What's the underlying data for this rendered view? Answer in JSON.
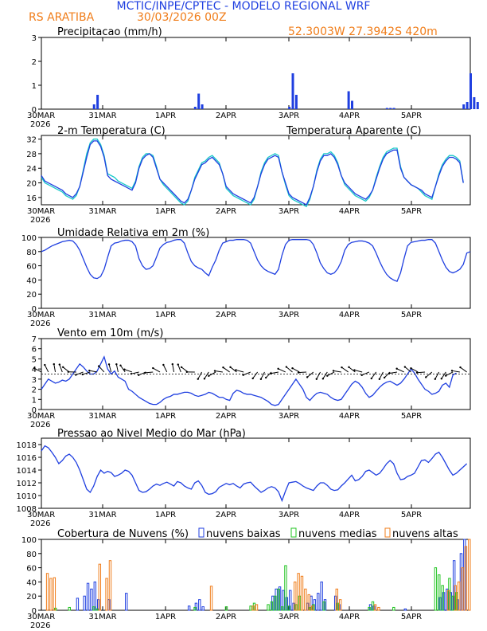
{
  "header": {
    "title": "MCTIC/INPE/CPTEC - MODELO REGIONAL WRF",
    "station": "RS ARATIBA",
    "run": "30/03/2026 00Z",
    "coords": "52.3003W 27.3942S 420m"
  },
  "colors": {
    "blue": "#1f3fe0",
    "cyan": "#17c8c8",
    "orange": "#f07d1a",
    "green": "#22c422",
    "title_blue": "#1f3fe0"
  },
  "x_axis": {
    "ticks": [
      "30MAR",
      "31MAR",
      "1APR",
      "2APR",
      "3APR",
      "4APR",
      "5APR"
    ],
    "year": "2026"
  },
  "chart_data": [
    {
      "type": "bar",
      "id": "precip",
      "title": "Precipitacao (mm/h)",
      "ylim": [
        0,
        3
      ],
      "yticks": [
        0,
        1,
        2,
        3
      ],
      "points": [
        [
          15,
          0.2
        ],
        [
          16,
          0.6
        ],
        [
          44,
          0.1
        ],
        [
          45,
          0.65
        ],
        [
          46,
          0.2
        ],
        [
          71,
          0.1
        ],
        [
          72,
          1.5
        ],
        [
          73,
          0.6
        ],
        [
          88,
          0.75
        ],
        [
          89,
          0.35
        ],
        [
          99,
          0.05
        ],
        [
          100,
          0.05
        ],
        [
          101,
          0.05
        ],
        [
          121,
          0.2
        ],
        [
          122,
          0.3
        ],
        [
          123,
          1.5
        ],
        [
          124,
          0.5
        ],
        [
          125,
          0.3
        ]
      ]
    },
    {
      "type": "line",
      "id": "temp",
      "title": "2-m Temperatura (C)",
      "legend": "Temperatura Aparente (C)",
      "ylim": [
        14,
        33
      ],
      "yticks": [
        16,
        20,
        24,
        28,
        32
      ],
      "series": [
        {
          "name": "2-m Temperatura",
          "values": [
            22,
            20.5,
            20,
            19.5,
            19,
            18.5,
            18,
            17,
            16.5,
            16,
            17,
            19,
            23,
            27,
            30.5,
            31.5,
            31.5,
            30,
            27,
            22,
            21,
            20.5,
            20,
            19.5,
            19,
            18.5,
            18,
            20,
            24,
            26.5,
            27.5,
            28,
            27,
            24,
            21,
            20,
            19,
            18,
            17,
            16,
            15,
            14.5,
            15.5,
            18,
            21,
            23,
            25,
            25.5,
            26.5,
            27,
            26,
            25,
            22.5,
            19,
            18,
            17,
            16.5,
            16,
            15.5,
            15,
            14.5,
            16,
            19,
            22.5,
            25,
            26.5,
            27,
            27.5,
            27,
            23,
            20,
            17,
            16,
            15.5,
            15,
            14.5,
            14,
            16,
            19,
            23,
            26,
            27.5,
            27.5,
            28,
            27,
            25,
            22,
            20,
            19,
            18,
            17,
            16.5,
            16,
            15.5,
            16.5,
            18,
            21,
            24,
            26.5,
            28,
            28.5,
            29,
            29,
            24,
            21.5,
            20.5,
            19.5,
            19,
            18.5,
            18,
            17,
            16.5,
            16,
            19,
            22,
            24.5,
            26,
            27,
            27,
            26.5,
            25.5,
            20
          ]
        },
        {
          "name": "Temperatura Aparente",
          "values": [
            21.5,
            20,
            19.5,
            19,
            18.5,
            18,
            17.5,
            16.5,
            16,
            15.5,
            16.5,
            19,
            23.5,
            28,
            31,
            32,
            32,
            30.5,
            27.5,
            22.5,
            22,
            21.5,
            20.5,
            20,
            19.5,
            19,
            18.5,
            20.5,
            24.5,
            27,
            28,
            28,
            27.5,
            24.5,
            21,
            19.5,
            18.5,
            17.5,
            16.5,
            15.5,
            14.5,
            14,
            15,
            18,
            21.5,
            23.5,
            25.5,
            26,
            27,
            27.5,
            26.5,
            25.5,
            22.5,
            18.5,
            17.5,
            16.5,
            16,
            15.5,
            15,
            14.5,
            14,
            15.5,
            19,
            23,
            25.5,
            27,
            27.5,
            28,
            27.5,
            23,
            19.5,
            16.5,
            15.5,
            15,
            14.5,
            14,
            13.5,
            15.5,
            19,
            23.5,
            26.5,
            28,
            28,
            28.5,
            27.5,
            25.5,
            22,
            19.5,
            18.5,
            17.5,
            16.5,
            16,
            15.5,
            15,
            16,
            18,
            21.5,
            24.5,
            27,
            28.5,
            29,
            29.5,
            29.5,
            24.5,
            21.5,
            20.5,
            19.5,
            19,
            18.5,
            17.5,
            16.5,
            16,
            15.5,
            19,
            22.5,
            25,
            26.5,
            27.5,
            27.5,
            27,
            26,
            20
          ]
        }
      ]
    },
    {
      "type": "line",
      "id": "rh",
      "title": "Umidade Relativa em 2m (%)",
      "ylim": [
        0,
        100
      ],
      "yticks": [
        0,
        20,
        40,
        60,
        80,
        100
      ],
      "series": [
        {
          "name": "Umidade Relativa",
          "values": [
            80,
            82,
            85,
            88,
            90,
            92,
            94,
            95,
            96,
            95,
            90,
            82,
            70,
            58,
            48,
            43,
            42,
            45,
            55,
            72,
            88,
            92,
            93,
            95,
            96,
            96,
            94,
            88,
            70,
            60,
            55,
            56,
            60,
            72,
            85,
            90,
            93,
            94,
            96,
            97,
            97,
            92,
            78,
            66,
            60,
            57,
            55,
            50,
            46,
            58,
            68,
            82,
            92,
            94,
            96,
            96,
            97,
            97,
            97,
            96,
            92,
            80,
            68,
            60,
            55,
            52,
            50,
            48,
            55,
            75,
            90,
            96,
            97,
            97,
            97,
            97,
            97,
            96,
            90,
            78,
            64,
            56,
            50,
            48,
            50,
            56,
            66,
            82,
            90,
            93,
            94,
            95,
            95,
            94,
            92,
            88,
            78,
            66,
            56,
            48,
            43,
            40,
            38,
            50,
            70,
            88,
            93,
            94,
            95,
            96,
            96,
            97,
            97,
            92,
            80,
            68,
            58,
            52,
            50,
            52,
            55,
            62,
            78,
            80
          ]
        }
      ]
    },
    {
      "type": "line",
      "id": "wind",
      "title": "Vento em 10m (m/s)",
      "ylim": [
        0,
        7
      ],
      "yticks": [
        0,
        1,
        2,
        3,
        4,
        5,
        6,
        7
      ],
      "series": [
        {
          "name": "Vento",
          "values": [
            2,
            2.5,
            3,
            2.8,
            2.6,
            2.7,
            2.9,
            2.8,
            3,
            3.5,
            4,
            4.5,
            4.2,
            3.8,
            3.5,
            3.5,
            3.8,
            4.5,
            5.2,
            4,
            3.5,
            3.8,
            3.2,
            3,
            2.8,
            2,
            1.8,
            1.5,
            1.2,
            1,
            0.8,
            0.6,
            0.5,
            0.5,
            0.7,
            1,
            1.2,
            1.3,
            1.5,
            1.5,
            1.6,
            1.7,
            1.7,
            1.6,
            1.4,
            1.3,
            1.4,
            1.5,
            1.7,
            1.6,
            1.4,
            1.2,
            1.2,
            1,
            0.9,
            1.6,
            1.9,
            1.8,
            1.6,
            1.5,
            1.5,
            1.4,
            1.3,
            1.2,
            1,
            0.8,
            0.5,
            0.4,
            0.5,
            1,
            1.5,
            2,
            2.5,
            3,
            2.5,
            2,
            1.2,
            0.9,
            1.3,
            1.6,
            1.7,
            1.6,
            1.5,
            1.2,
            1,
            0.9,
            1,
            1.5,
            2,
            2.5,
            2.8,
            2.6,
            2.2,
            1.6,
            1.2,
            1.4,
            1.8,
            2.2,
            2.5,
            2.7,
            2.8,
            2.6,
            2.4,
            2.6,
            3,
            3.5,
            4,
            3.6,
            3,
            2.5,
            2,
            1.8,
            1.5,
            1.6,
            1.8,
            2.4,
            2.6,
            2.2,
            3.4,
            3.6
          ]
        }
      ]
    },
    {
      "type": "line",
      "id": "pressure",
      "title": "Pressao ao Nivel Medio do Mar (hPa)",
      "ylim": [
        1008,
        1019
      ],
      "yticks": [
        1008,
        1010,
        1012,
        1014,
        1016,
        1018
      ],
      "series": [
        {
          "name": "Pressao",
          "values": [
            1017,
            1017.8,
            1017.5,
            1016.8,
            1016,
            1015,
            1015.5,
            1016.2,
            1016.5,
            1016,
            1015.2,
            1014,
            1012.5,
            1011,
            1010.5,
            1011.5,
            1013,
            1014,
            1013.5,
            1013.8,
            1013.6,
            1013,
            1013.2,
            1013.5,
            1014,
            1013.8,
            1013.2,
            1012,
            1010.8,
            1010.5,
            1010.6,
            1011,
            1011.5,
            1011.8,
            1011.6,
            1011.9,
            1012.1,
            1011.8,
            1011.5,
            1012.2,
            1012,
            1011.5,
            1011.2,
            1011,
            1012,
            1012.3,
            1011.6,
            1010.5,
            1010.2,
            1010.3,
            1010.6,
            1011.3,
            1011.6,
            1011.9,
            1011.7,
            1011.9,
            1011.5,
            1011.2,
            1011.8,
            1012,
            1012.1,
            1011.5,
            1011,
            1010.5,
            1010.8,
            1011.2,
            1011.4,
            1011.2,
            1010.6,
            1009.2,
            1010.7,
            1012,
            1012.1,
            1012.2,
            1011.9,
            1011.5,
            1011.2,
            1011,
            1010.8,
            1011.5,
            1012,
            1012,
            1011.6,
            1011,
            1010.8,
            1010.9,
            1011.5,
            1012,
            1012.6,
            1013.2,
            1012.3,
            1012.5,
            1013,
            1013.8,
            1014,
            1013.6,
            1013.2,
            1013.5,
            1014.2,
            1015,
            1015.5,
            1015,
            1013.5,
            1012.5,
            1012.6,
            1013,
            1013.2,
            1013.5,
            1014.5,
            1015.5,
            1015.6,
            1015.2,
            1015.8,
            1016.5,
            1016.8,
            1016,
            1015,
            1014,
            1013.2,
            1013.5,
            1014,
            1014.5,
            1015
          ]
        }
      ]
    },
    {
      "type": "bar",
      "id": "clouds",
      "title": "Cobertura de Nuvens (%)",
      "ylim": [
        0,
        100
      ],
      "yticks": [
        0,
        20,
        40,
        60,
        80,
        100
      ],
      "legend": [
        "nuvens baixas",
        "nuvens medias",
        "nuvens altas"
      ],
      "baixas": [
        [
          11,
          17
        ],
        [
          13,
          20
        ],
        [
          14,
          38
        ],
        [
          15,
          30
        ],
        [
          16,
          40
        ],
        [
          17,
          15
        ],
        [
          20,
          15
        ],
        [
          25,
          24
        ],
        [
          43,
          6
        ],
        [
          45,
          10
        ],
        [
          46,
          15
        ],
        [
          47,
          5
        ],
        [
          67,
          20
        ],
        [
          68,
          30
        ],
        [
          69,
          33
        ],
        [
          70,
          28
        ],
        [
          71,
          18
        ],
        [
          72,
          28
        ],
        [
          73,
          10
        ],
        [
          77,
          10
        ],
        [
          78,
          20
        ],
        [
          79,
          15
        ],
        [
          80,
          24
        ],
        [
          81,
          40
        ],
        [
          82,
          15
        ],
        [
          85,
          20
        ],
        [
          86,
          8
        ],
        [
          95,
          8
        ],
        [
          96,
          6
        ],
        [
          105,
          2
        ],
        [
          115,
          18
        ],
        [
          116,
          25
        ],
        [
          117,
          30
        ],
        [
          118,
          25
        ],
        [
          119,
          70
        ],
        [
          120,
          15
        ],
        [
          121,
          80
        ],
        [
          122,
          100
        ]
      ],
      "medias": [
        [
          4,
          3
        ],
        [
          8,
          4
        ],
        [
          15,
          5
        ],
        [
          16,
          2
        ],
        [
          44,
          4
        ],
        [
          53,
          5
        ],
        [
          60,
          6
        ],
        [
          61,
          10
        ],
        [
          65,
          8
        ],
        [
          66,
          12
        ],
        [
          67,
          20
        ],
        [
          68,
          30
        ],
        [
          69,
          5
        ],
        [
          70,
          63
        ],
        [
          71,
          6
        ],
        [
          73,
          8
        ],
        [
          74,
          20
        ],
        [
          77,
          4
        ],
        [
          78,
          8
        ],
        [
          81,
          12
        ],
        [
          85,
          10
        ],
        [
          94,
          4
        ],
        [
          95,
          12
        ],
        [
          101,
          4
        ],
        [
          113,
          60
        ],
        [
          114,
          50
        ],
        [
          115,
          35
        ],
        [
          117,
          45
        ],
        [
          118,
          20
        ],
        [
          119,
          25
        ]
      ],
      "altas": [
        [
          1,
          52
        ],
        [
          2,
          45
        ],
        [
          3,
          46
        ],
        [
          16,
          65
        ],
        [
          18,
          45
        ],
        [
          19,
          70
        ],
        [
          48,
          34
        ],
        [
          60,
          6
        ],
        [
          61,
          8
        ],
        [
          72,
          40
        ],
        [
          73,
          52
        ],
        [
          74,
          48
        ],
        [
          75,
          30
        ],
        [
          76,
          22
        ],
        [
          77,
          6
        ],
        [
          84,
          30
        ],
        [
          85,
          15
        ],
        [
          95,
          8
        ],
        [
          96,
          4
        ],
        [
          116,
          28
        ],
        [
          118,
          35
        ],
        [
          119,
          40
        ],
        [
          120,
          60
        ],
        [
          121,
          90
        ],
        [
          122,
          100
        ]
      ]
    }
  ]
}
